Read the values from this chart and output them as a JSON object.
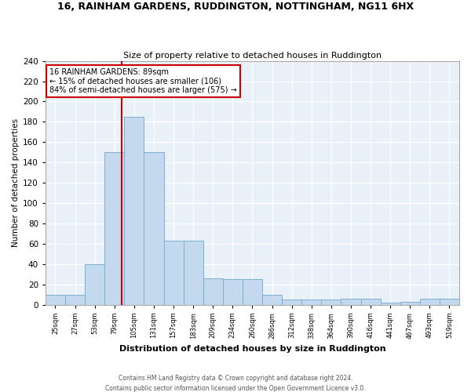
{
  "title": "16, RAINHAM GARDENS, RUDDINGTON, NOTTINGHAM, NG11 6HX",
  "subtitle": "Size of property relative to detached houses in Ruddington",
  "xlabel": "Distribution of detached houses by size in Ruddington",
  "ylabel": "Number of detached properties",
  "bar_color": "#c5d9ee",
  "bar_edge_color": "#7bafd4",
  "background_color": "#e8f0f8",
  "grid_color": "#ffffff",
  "tick_labels": [
    "25sqm",
    "27sqm",
    "53sqm",
    "79sqm",
    "105sqm",
    "131sqm",
    "157sqm",
    "183sqm",
    "209sqm",
    "234sqm",
    "260sqm",
    "286sqm",
    "312sqm",
    "338sqm",
    "364sqm",
    "390sqm",
    "416sqm",
    "441sqm",
    "467sqm",
    "493sqm",
    "519sqm"
  ],
  "bar_values": [
    10,
    10,
    40,
    150,
    185,
    150,
    63,
    63,
    26,
    25,
    25,
    10,
    5,
    5,
    5,
    6,
    6,
    2,
    3,
    6,
    6
  ],
  "ylim": [
    0,
    240
  ],
  "yticks": [
    0,
    20,
    40,
    60,
    80,
    100,
    120,
    140,
    160,
    180,
    200,
    220,
    240
  ],
  "annotation_text": "16 RAINHAM GARDENS: 89sqm\n← 15% of detached houses are smaller (106)\n84% of semi-detached houses are larger (575) →",
  "annotation_box_color": "#ffffff",
  "annotation_box_edge_color": "#cc0000",
  "red_line_color": "#cc0000",
  "footer_line1": "Contains HM Land Registry data © Crown copyright and database right 2024.",
  "footer_line2": "Contains public sector information licensed under the Open Government Licence v3.0.",
  "fig_bg_color": "#ffffff"
}
